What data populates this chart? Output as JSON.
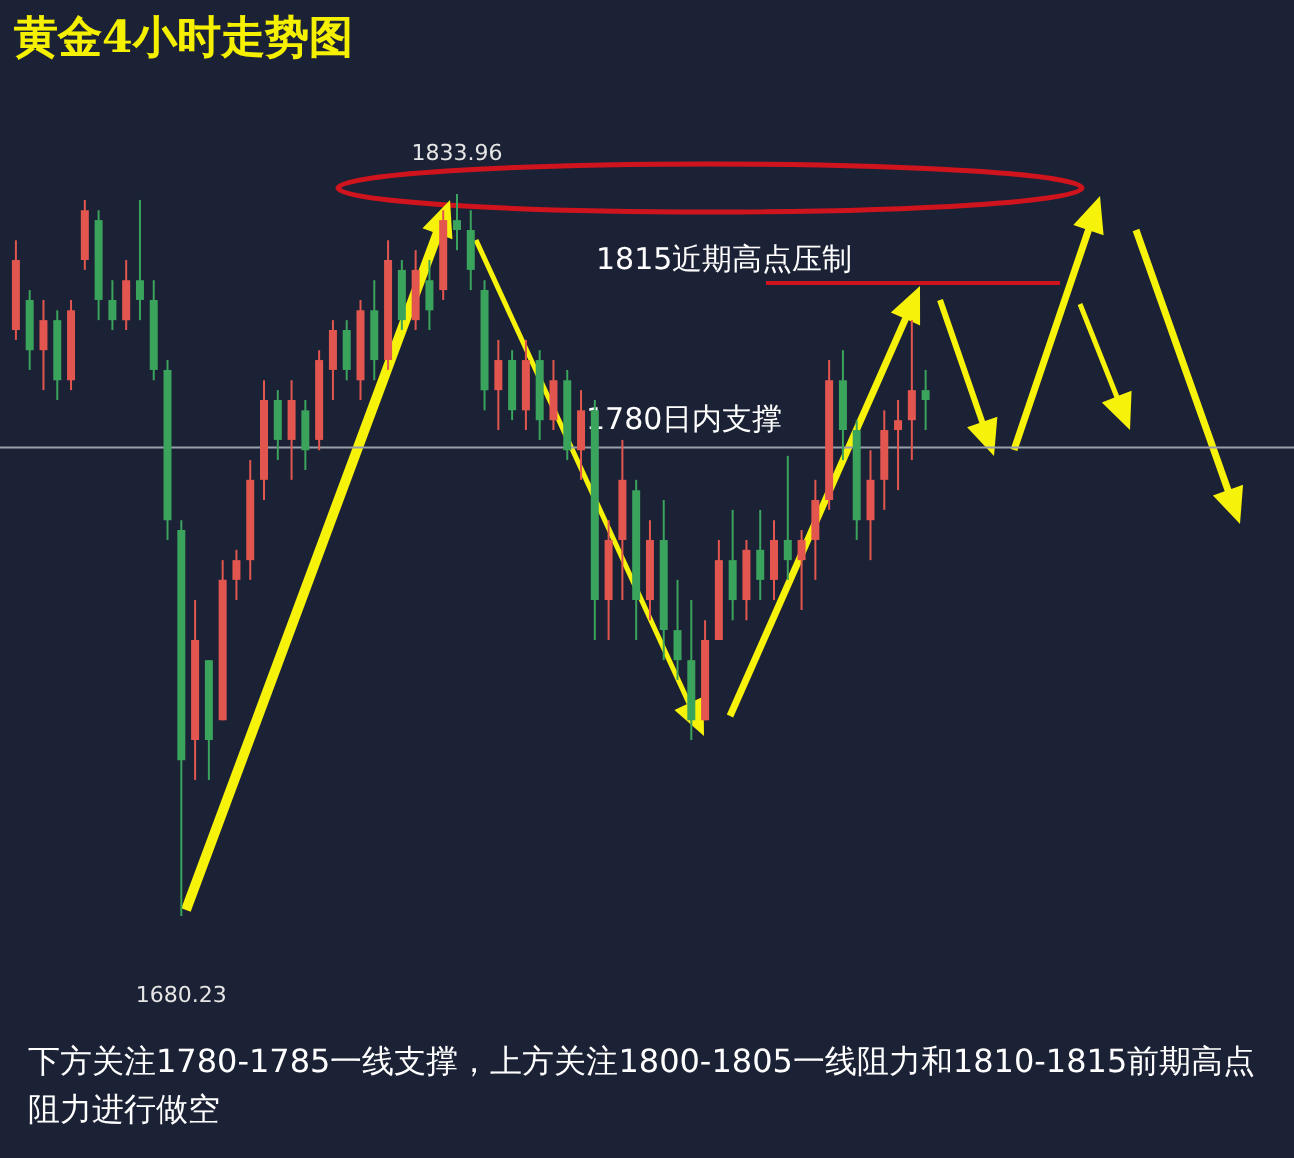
{
  "chart_data": {
    "type": "candlestick",
    "title": "黄金4小时走势图",
    "categories": [
      null,
      null,
      null,
      null,
      null,
      null,
      null,
      null,
      null,
      null,
      null,
      null,
      null,
      null,
      null,
      null,
      null,
      null,
      null,
      null,
      null,
      null,
      null,
      null,
      null,
      null,
      null,
      null,
      null,
      null,
      null,
      null,
      null,
      null,
      null,
      null,
      null,
      null,
      null,
      null,
      null,
      null,
      null,
      null,
      null,
      null,
      null,
      null,
      null,
      null,
      null,
      null,
      null,
      null,
      null,
      null,
      null,
      null,
      null,
      null,
      null,
      null,
      null,
      null,
      null,
      null,
      null
    ],
    "ohlc": [
      [
        1805.0,
        1824.1,
        1802.9,
        1819.9
      ],
      [
        1811.4,
        1813.5,
        1796.5,
        1800.7
      ],
      [
        1800.7,
        1811.4,
        1792.2,
        1807.1
      ],
      [
        1807.1,
        1809.2,
        1790.1,
        1794.3
      ],
      [
        1794.3,
        1811.4,
        1792.2,
        1809.2
      ],
      [
        1819.9,
        1832.7,
        1817.8,
        1830.5
      ],
      [
        1828.4,
        1830.5,
        1807.1,
        1811.4
      ],
      [
        1811.4,
        1815.6,
        1805.0,
        1807.1
      ],
      [
        1807.1,
        1819.9,
        1805.0,
        1815.6
      ],
      [
        1815.6,
        1832.7,
        1807.1,
        1811.4
      ],
      [
        1811.4,
        1815.6,
        1794.3,
        1796.5
      ],
      [
        1796.5,
        1798.6,
        1760.3,
        1764.5
      ],
      [
        1762.4,
        1764.5,
        1680.23,
        1713.4
      ],
      [
        1717.7,
        1747.5,
        1709.2,
        1739.0
      ],
      [
        1734.7,
        1734.7,
        1709.2,
        1717.7
      ],
      [
        1721.9,
        1756.0,
        1721.9,
        1751.8
      ],
      [
        1751.8,
        1758.2,
        1747.5,
        1756.0
      ],
      [
        1756.0,
        1777.3,
        1751.8,
        1773.1
      ],
      [
        1773.1,
        1794.3,
        1768.8,
        1790.1
      ],
      [
        1790.1,
        1792.2,
        1777.3,
        1781.6
      ],
      [
        1781.6,
        1794.3,
        1773.1,
        1790.1
      ],
      [
        1787.9,
        1790.1,
        1775.2,
        1779.4
      ],
      [
        1781.6,
        1800.7,
        1779.4,
        1798.6
      ],
      [
        1796.5,
        1807.1,
        1790.1,
        1805.0
      ],
      [
        1805.0,
        1807.1,
        1794.3,
        1796.5
      ],
      [
        1794.3,
        1811.4,
        1790.1,
        1809.2
      ],
      [
        1809.2,
        1815.6,
        1794.3,
        1798.6
      ],
      [
        1798.6,
        1824.1,
        1796.5,
        1819.9
      ],
      [
        1817.8,
        1819.9,
        1805.0,
        1807.1
      ],
      [
        1807.1,
        1822.0,
        1805.0,
        1817.8
      ],
      [
        1815.6,
        1819.9,
        1805.0,
        1809.2
      ],
      [
        1813.5,
        1830.5,
        1811.4,
        1828.4
      ],
      [
        1828.4,
        1833.96,
        1822.0,
        1826.3
      ],
      [
        1826.3,
        1830.5,
        1813.5,
        1817.8
      ],
      [
        1813.5,
        1815.6,
        1787.9,
        1792.2
      ],
      [
        1792.2,
        1802.9,
        1783.7,
        1798.6
      ],
      [
        1798.6,
        1800.7,
        1785.8,
        1787.9
      ],
      [
        1787.9,
        1802.9,
        1783.7,
        1798.6
      ],
      [
        1798.6,
        1800.7,
        1781.6,
        1785.8
      ],
      [
        1785.8,
        1798.6,
        1783.7,
        1794.3
      ],
      [
        1794.3,
        1796.5,
        1777.3,
        1779.4
      ],
      [
        1779.4,
        1792.2,
        1773.1,
        1787.9
      ],
      [
        1787.9,
        1790.1,
        1739.0,
        1747.5
      ],
      [
        1747.5,
        1764.5,
        1739.0,
        1760.3
      ],
      [
        1760.3,
        1781.6,
        1747.5,
        1773.1
      ],
      [
        1770.9,
        1773.1,
        1739.0,
        1747.5
      ],
      [
        1747.5,
        1764.5,
        1743.2,
        1760.3
      ],
      [
        1760.3,
        1768.8,
        1734.7,
        1741.1
      ],
      [
        1741.1,
        1751.8,
        1730.5,
        1734.7
      ],
      [
        1734.7,
        1747.5,
        1717.7,
        1721.9
      ],
      [
        1721.9,
        1743.2,
        1721.9,
        1739.0
      ],
      [
        1739.0,
        1760.3,
        1739.0,
        1756.0
      ],
      [
        1756.0,
        1766.7,
        1743.2,
        1747.5
      ],
      [
        1747.5,
        1760.3,
        1743.2,
        1758.2
      ],
      [
        1758.2,
        1766.7,
        1747.5,
        1751.8
      ],
      [
        1751.8,
        1764.5,
        1747.5,
        1760.3
      ],
      [
        1760.3,
        1778.2,
        1751.8,
        1756.0
      ],
      [
        1756.0,
        1762.4,
        1745.4,
        1760.3
      ],
      [
        1760.3,
        1773.1,
        1751.8,
        1768.8
      ],
      [
        1768.8,
        1798.6,
        1766.7,
        1794.3
      ],
      [
        1794.3,
        1800.7,
        1777.3,
        1783.7
      ],
      [
        1783.7,
        1785.8,
        1760.3,
        1764.5
      ],
      [
        1764.5,
        1779.4,
        1756.0,
        1773.1
      ],
      [
        1773.1,
        1787.9,
        1766.7,
        1783.7
      ],
      [
        1783.7,
        1790.1,
        1770.9,
        1785.8
      ],
      [
        1785.8,
        1807.1,
        1777.3,
        1792.2
      ],
      [
        1792.2,
        1796.5,
        1783.7,
        1790.1
      ]
    ],
    "colors": [
      "#e2564f",
      "#3aa35c",
      "#e2564f",
      "#3aa35c",
      "#e2564f",
      "#e2564f",
      "#3aa35c",
      "#3aa35c",
      "#e2564f",
      "#3aa35c",
      "#3aa35c",
      "#3aa35c",
      "#3aa35c",
      "#e2564f",
      "#3aa35c",
      "#e2564f",
      "#e2564f",
      "#e2564f",
      "#e2564f",
      "#3aa35c",
      "#e2564f",
      "#3aa35c",
      "#e2564f",
      "#e2564f",
      "#3aa35c",
      "#e2564f",
      "#3aa35c",
      "#e2564f",
      "#3aa35c",
      "#e2564f",
      "#3aa35c",
      "#e2564f",
      "#3aa35c",
      "#3aa35c",
      "#3aa35c",
      "#e2564f",
      "#3aa35c",
      "#e2564f",
      "#3aa35c",
      "#e2564f",
      "#3aa35c",
      "#e2564f",
      "#3aa35c",
      "#e2564f",
      "#e2564f",
      "#3aa35c",
      "#e2564f",
      "#3aa35c",
      "#3aa35c",
      "#3aa35c",
      "#e2564f",
      "#e2564f",
      "#3aa35c",
      "#e2564f",
      "#3aa35c",
      "#e2564f",
      "#3aa35c",
      "#e2564f",
      "#e2564f",
      "#e2564f",
      "#3aa35c",
      "#3aa35c",
      "#e2564f",
      "#e2564f",
      "#e2564f",
      "#e2564f",
      "#3aa35c"
    ],
    "ref_lines": [
      {
        "axis": "y",
        "value": 1780,
        "label": "1780日内支撑",
        "color": "#9aa0aa"
      },
      {
        "axis": "y",
        "value": 1815,
        "label": "1815近期高点压制",
        "color": "#d0141e"
      }
    ],
    "annotations": [
      {
        "text": "1833.96",
        "y": 1833.96
      },
      {
        "text": "1680.23",
        "y": 1680.23
      },
      "下方关注1780-1785一线支撑，上方关注1800-1805一线阻力和1810-1815前期高点阻力进行做空"
    ],
    "tick_labels": false
  }
}
